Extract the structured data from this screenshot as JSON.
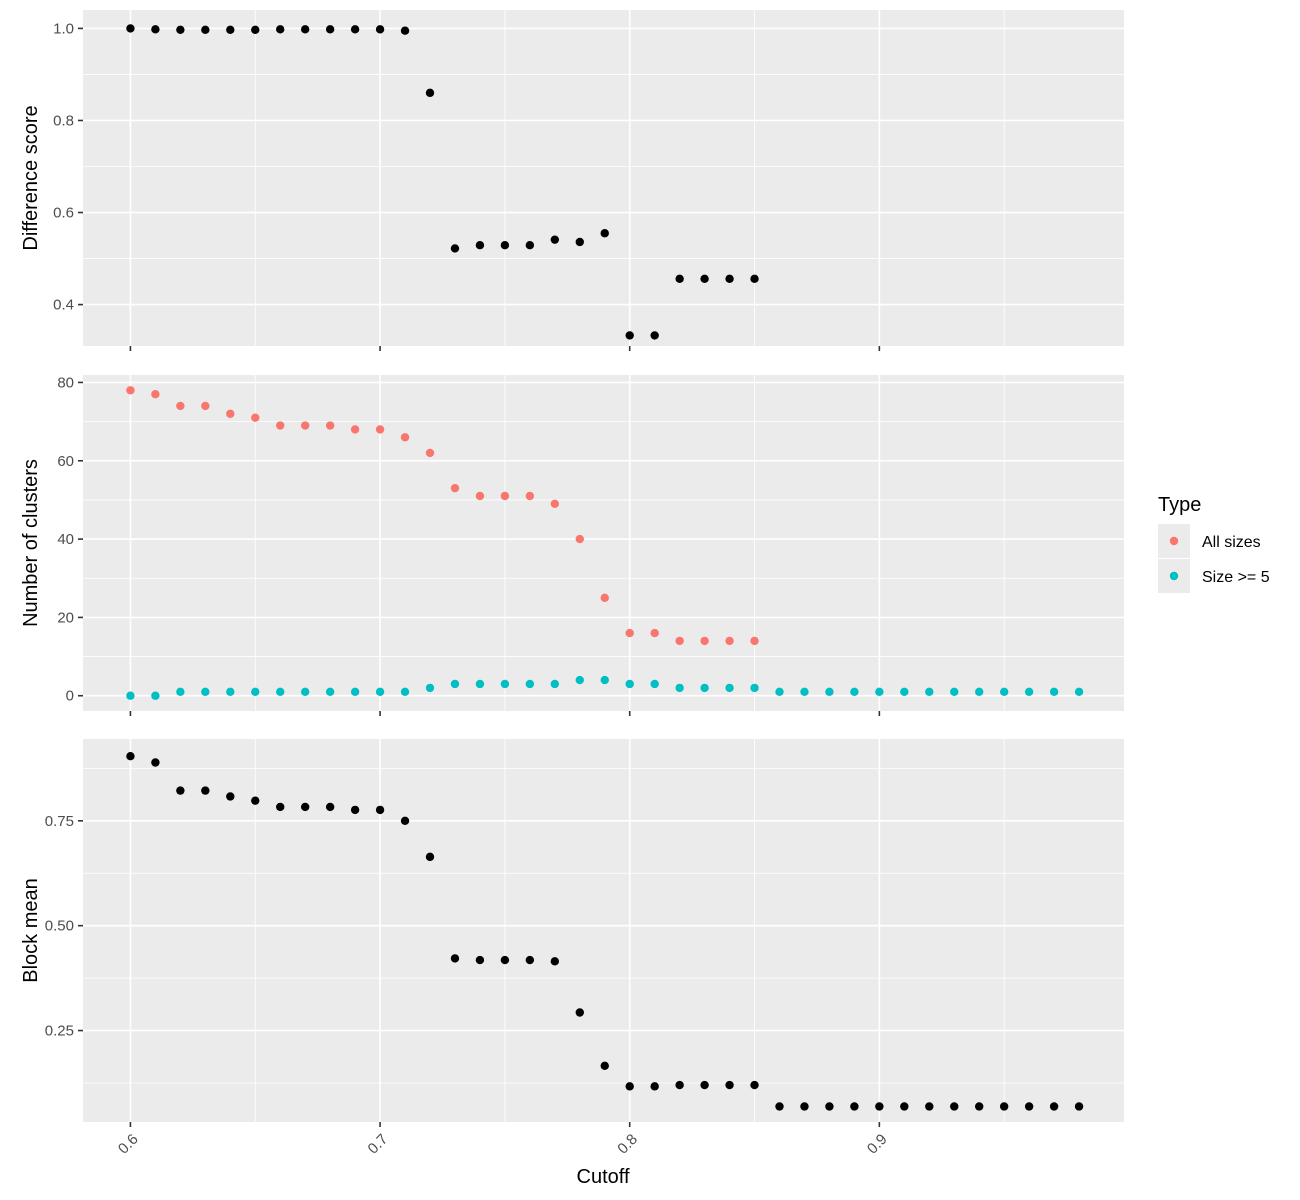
{
  "colors": {
    "black": "#000000",
    "all_sizes": "#F8766D",
    "size_ge_5": "#00BFC4"
  },
  "chart_data": {
    "type": "scatter",
    "xlabel": "Cutoff",
    "xlim": [
      0.581,
      0.998
    ],
    "x_ticks": [
      0.6,
      0.7,
      0.8,
      0.9
    ],
    "x_tick_labels": [
      "0.6",
      "0.7",
      "0.8",
      "0.9"
    ],
    "grid": true,
    "legend": {
      "title": "Type",
      "placement": "right",
      "entries": [
        {
          "label": "All sizes",
          "color": "#F8766D"
        },
        {
          "label": "Size >= 5",
          "color": "#00BFC4"
        }
      ]
    },
    "panels": [
      {
        "ylabel": "Difference score",
        "ylim": [
          0.31,
          1.04
        ],
        "y_ticks": [
          0.4,
          0.6,
          0.8,
          1.0
        ],
        "y_tick_labels": [
          "0.4",
          "0.6",
          "0.8",
          "1.0"
        ],
        "series": [
          {
            "color": "#000000",
            "x": [
              0.6,
              0.61,
              0.62,
              0.63,
              0.64,
              0.65,
              0.66,
              0.67,
              0.68,
              0.69,
              0.7,
              0.71,
              0.72,
              0.73,
              0.74,
              0.75,
              0.76,
              0.77,
              0.78,
              0.79,
              0.8,
              0.81,
              0.82,
              0.83,
              0.84,
              0.85
            ],
            "y": [
              1.0,
              0.998,
              0.997,
              0.997,
              0.997,
              0.997,
              0.998,
              0.998,
              0.998,
              0.998,
              0.998,
              0.995,
              0.86,
              0.522,
              0.529,
              0.529,
              0.529,
              0.541,
              0.536,
              0.555,
              0.333,
              0.333,
              0.456,
              0.456,
              0.456,
              0.456
            ]
          }
        ]
      },
      {
        "ylabel": "Number of clusters",
        "ylim": [
          -3.9,
          81.9
        ],
        "y_ticks": [
          0,
          20,
          40,
          60,
          80
        ],
        "y_tick_labels": [
          "0",
          "20",
          "40",
          "60",
          "80"
        ],
        "series": [
          {
            "name": "All sizes",
            "color": "#F8766D",
            "x": [
              0.6,
              0.61,
              0.62,
              0.63,
              0.64,
              0.65,
              0.66,
              0.67,
              0.68,
              0.69,
              0.7,
              0.71,
              0.72,
              0.73,
              0.74,
              0.75,
              0.76,
              0.77,
              0.78,
              0.79,
              0.8,
              0.81,
              0.82,
              0.83,
              0.84,
              0.85
            ],
            "y": [
              78,
              77,
              74,
              74,
              72,
              71,
              69,
              69,
              69,
              68,
              68,
              66,
              62,
              53,
              51,
              51,
              51,
              49,
              40,
              25,
              16,
              16,
              14,
              14,
              14,
              14
            ]
          },
          {
            "name": "Size >= 5",
            "color": "#00BFC4",
            "x": [
              0.6,
              0.61,
              0.62,
              0.63,
              0.64,
              0.65,
              0.66,
              0.67,
              0.68,
              0.69,
              0.7,
              0.71,
              0.72,
              0.73,
              0.74,
              0.75,
              0.76,
              0.77,
              0.78,
              0.79,
              0.8,
              0.81,
              0.82,
              0.83,
              0.84,
              0.85,
              0.86,
              0.87,
              0.88,
              0.89,
              0.9,
              0.91,
              0.92,
              0.93,
              0.94,
              0.95,
              0.96,
              0.97,
              0.98
            ],
            "y": [
              0,
              0,
              1,
              1,
              1,
              1,
              1,
              1,
              1,
              1,
              1,
              1,
              2,
              3,
              3,
              3,
              3,
              3,
              4,
              4,
              3,
              3,
              2,
              2,
              2,
              2,
              1,
              1,
              1,
              1,
              1,
              1,
              1,
              1,
              1,
              1,
              1,
              1,
              1
            ]
          }
        ]
      },
      {
        "ylabel": "Block mean",
        "ylim": [
          0.032,
          0.945
        ],
        "y_ticks": [
          0.25,
          0.5,
          0.75
        ],
        "y_tick_labels": [
          "0.25",
          "0.50",
          "0.75"
        ],
        "series": [
          {
            "color": "#000000",
            "x": [
              0.6,
              0.61,
              0.62,
              0.63,
              0.64,
              0.65,
              0.66,
              0.67,
              0.68,
              0.69,
              0.7,
              0.71,
              0.72,
              0.73,
              0.74,
              0.75,
              0.76,
              0.77,
              0.78,
              0.79,
              0.8,
              0.81,
              0.82,
              0.83,
              0.84,
              0.85,
              0.86,
              0.87,
              0.88,
              0.89,
              0.9,
              0.91,
              0.92,
              0.93,
              0.94,
              0.95,
              0.96,
              0.97,
              0.98
            ],
            "y": [
              0.904,
              0.889,
              0.822,
              0.822,
              0.808,
              0.798,
              0.783,
              0.783,
              0.783,
              0.776,
              0.776,
              0.75,
              0.664,
              0.422,
              0.418,
              0.418,
              0.418,
              0.415,
              0.293,
              0.166,
              0.117,
              0.117,
              0.12,
              0.12,
              0.12,
              0.12,
              0.069,
              0.069,
              0.069,
              0.069,
              0.069,
              0.069,
              0.069,
              0.069,
              0.069,
              0.069,
              0.069,
              0.069,
              0.069
            ]
          }
        ]
      }
    ]
  }
}
